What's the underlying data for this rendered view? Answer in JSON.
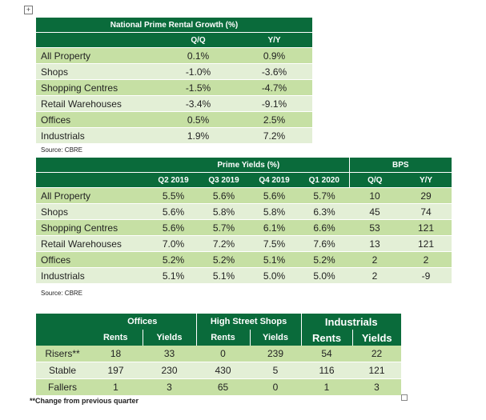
{
  "table1": {
    "title": "National Prime Rental Growth (%)",
    "columns": [
      "Q/Q",
      "Y/Y"
    ],
    "rows": [
      {
        "label": "All Property",
        "values": [
          "0.1%",
          "0.9%"
        ]
      },
      {
        "label": "Shops",
        "values": [
          "-1.0%",
          "-3.6%"
        ]
      },
      {
        "label": "Shopping Centres",
        "values": [
          "-1.5%",
          "-4.7%"
        ]
      },
      {
        "label": "Retail Warehouses",
        "values": [
          "-3.4%",
          "-9.1%"
        ]
      },
      {
        "label": "Offices",
        "values": [
          "0.5%",
          "2.5%"
        ]
      },
      {
        "label": "Industrials",
        "values": [
          "1.9%",
          "7.2%"
        ]
      }
    ],
    "source": "Source: CBRE"
  },
  "table2": {
    "group1_title": "Prime Yields (%)",
    "group2_title": "BPS",
    "columns": [
      "Q2 2019",
      "Q3 2019",
      "Q4 2019",
      "Q1 2020",
      "Q/Q",
      "Y/Y"
    ],
    "rows": [
      {
        "label": "All Property",
        "values": [
          "5.5%",
          "5.6%",
          "5.6%",
          "5.7%",
          "10",
          "29"
        ]
      },
      {
        "label": "Shops",
        "values": [
          "5.6%",
          "5.8%",
          "5.8%",
          "6.3%",
          "45",
          "74"
        ]
      },
      {
        "label": "Shopping Centres",
        "values": [
          "5.6%",
          "5.7%",
          "6.1%",
          "6.6%",
          "53",
          "121"
        ]
      },
      {
        "label": "Retail Warehouses",
        "values": [
          "7.0%",
          "7.2%",
          "7.5%",
          "7.6%",
          "13",
          "121"
        ]
      },
      {
        "label": "Offices",
        "values": [
          "5.2%",
          "5.2%",
          "5.1%",
          "5.2%",
          "2",
          "2"
        ]
      },
      {
        "label": "Industrials",
        "values": [
          "5.1%",
          "5.1%",
          "5.0%",
          "5.0%",
          "2",
          "-9"
        ]
      }
    ],
    "source": "Source: CBRE"
  },
  "table3": {
    "groups": [
      "Offices",
      "High Street Shops",
      "Industrials"
    ],
    "subcolumns": [
      "Rents",
      "Yields",
      "Rents",
      "Yields",
      "Rents",
      "Yields"
    ],
    "rows": [
      {
        "label": "Risers**",
        "values": [
          "18",
          "33",
          "0",
          "239",
          "54",
          "22"
        ]
      },
      {
        "label": "Stable",
        "values": [
          "197",
          "230",
          "430",
          "5",
          "116",
          "121"
        ]
      },
      {
        "label": "Fallers",
        "values": [
          "1",
          "3",
          "65",
          "0",
          "1",
          "3"
        ]
      }
    ],
    "footnote": "**Change from previous quarter"
  },
  "icons": {
    "move_handle": "move-handle-icon",
    "resize_handle": "resize-handle-icon"
  },
  "colors": {
    "header": "#0a6b3b",
    "band_light": "#c6e0a4",
    "band_pale": "#e3efd6"
  }
}
